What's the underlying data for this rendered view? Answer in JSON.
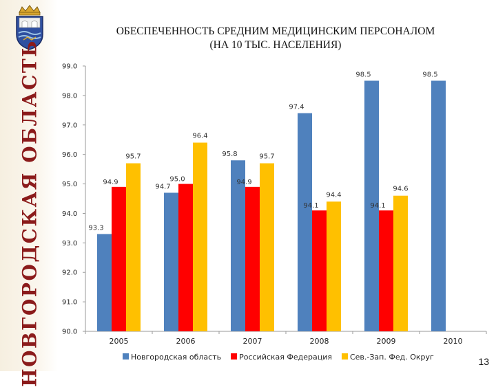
{
  "slide": {
    "region_name": "НОВГОРОДСКАЯ ОБЛАСТЬ",
    "title_line1": "ОБЕСПЕЧЕННОСТЬ СРЕДНИМ МЕДИЦИНСКИМ ПЕРСОНАЛОМ",
    "title_line2": "(НА 10 ТЫС. НАСЕЛЕНИЯ)",
    "page_number": "13"
  },
  "chart_data": {
    "type": "bar",
    "title": "ОБЕСПЕЧЕННОСТЬ СРЕДНИМ МЕДИЦИНСКИМ ПЕРСОНАЛОМ (НА 10 ТЫС. НАСЕЛЕНИЯ)",
    "categories": [
      "2005",
      "2006",
      "2007",
      "2008",
      "2009",
      "2010"
    ],
    "series": [
      {
        "name": "Новгородская область",
        "color": "#4f81bd",
        "values": [
          93.3,
          94.7,
          95.8,
          97.4,
          98.5,
          98.5
        ]
      },
      {
        "name": "Российская Федерация",
        "color": "#ff0000",
        "values": [
          94.9,
          95.0,
          94.9,
          94.1,
          94.1,
          null
        ]
      },
      {
        "name": "Сев.-Зап. Фед. Округ",
        "color": "#ffc000",
        "values": [
          95.7,
          96.4,
          95.7,
          94.4,
          94.6,
          null
        ]
      }
    ],
    "data_labels": [
      [
        "93.3",
        "94.7",
        "95.8",
        "97.4",
        "98.5",
        "98.5"
      ],
      [
        "94.9",
        "95.0",
        "94.9",
        "94.1",
        "94.1",
        ""
      ],
      [
        "95.7",
        "96.4",
        "95.7",
        "94.4",
        "94.6",
        ""
      ]
    ],
    "yticks": [
      "90.0",
      "91.0",
      "92.0",
      "93.0",
      "94.0",
      "95.0",
      "96.0",
      "97.0",
      "98.0",
      "99.0"
    ],
    "ylim": [
      90,
      99
    ],
    "xlabel": "",
    "ylabel": "",
    "grid": false,
    "legend_position": "bottom"
  }
}
